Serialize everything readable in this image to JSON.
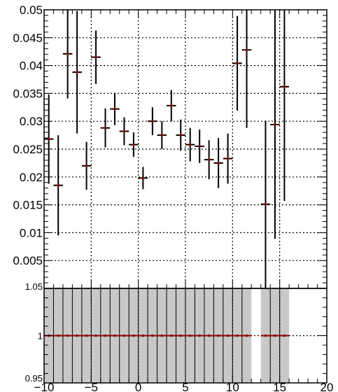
{
  "chart_data": [
    {
      "type": "scatter",
      "panel": "upper",
      "title": "",
      "xlabel": "",
      "ylabel": "",
      "xlim": [
        -10,
        20
      ],
      "ylim": [
        0,
        0.05
      ],
      "grid": true,
      "x_ticks": [
        "−10",
        "−5",
        "0",
        "5",
        "10",
        "15",
        "20"
      ],
      "y_ticks": [
        "0.005",
        "0.01",
        "0.015",
        "0.02",
        "0.025",
        "0.03",
        "0.035",
        "0.04",
        "0.045",
        "0.05"
      ],
      "marker_color": "#8b0000",
      "errorbar_color": "#000000",
      "points": [
        {
          "x": -9.5,
          "y": 0.0268,
          "yerr": 0.008
        },
        {
          "x": -8.5,
          "y": 0.0185,
          "yerr": 0.009
        },
        {
          "x": -7.5,
          "y": 0.0421,
          "yerr": 0.008
        },
        {
          "x": -6.5,
          "y": 0.0388,
          "yerr": 0.011
        },
        {
          "x": -5.5,
          "y": 0.022,
          "yerr": 0.0043
        },
        {
          "x": -4.5,
          "y": 0.0415,
          "yerr": 0.0048
        },
        {
          "x": -3.5,
          "y": 0.0288,
          "yerr": 0.0035
        },
        {
          "x": -2.5,
          "y": 0.0322,
          "yerr": 0.0029
        },
        {
          "x": -1.5,
          "y": 0.0282,
          "yerr": 0.0025
        },
        {
          "x": -0.5,
          "y": 0.0258,
          "yerr": 0.0022
        },
        {
          "x": 0.5,
          "y": 0.0198,
          "yerr": 0.002
        },
        {
          "x": 1.5,
          "y": 0.03,
          "yerr": 0.0025
        },
        {
          "x": 2.5,
          "y": 0.0275,
          "yerr": 0.0025
        },
        {
          "x": 3.5,
          "y": 0.0328,
          "yerr": 0.0028
        },
        {
          "x": 4.5,
          "y": 0.0275,
          "yerr": 0.0028
        },
        {
          "x": 5.5,
          "y": 0.0258,
          "yerr": 0.003
        },
        {
          "x": 6.5,
          "y": 0.0255,
          "yerr": 0.003
        },
        {
          "x": 7.5,
          "y": 0.0231,
          "yerr": 0.0035
        },
        {
          "x": 8.5,
          "y": 0.0225,
          "yerr": 0.0045
        },
        {
          "x": 9.5,
          "y": 0.0233,
          "yerr": 0.0045
        },
        {
          "x": 10.5,
          "y": 0.0404,
          "yerr": 0.0085
        },
        {
          "x": 11.5,
          "y": 0.0428,
          "yerr": 0.014
        },
        {
          "x": 13.5,
          "y": 0.0151,
          "yerr": 0.015
        },
        {
          "x": 14.5,
          "y": 0.0294,
          "yerr": 0.0205
        },
        {
          "x": 15.5,
          "y": 0.0362,
          "yerr": 0.0205
        }
      ]
    },
    {
      "type": "scatter",
      "panel": "lower-ratio",
      "title": "",
      "xlabel": "",
      "ylabel": "",
      "xlim": [
        -10,
        20
      ],
      "ylim": [
        0.95,
        1.05
      ],
      "grid": true,
      "y_ticks": [
        "0.95",
        "1",
        "1.05"
      ],
      "band_color": "#c8c8c8",
      "marker_color": "#8b0000",
      "bands": [
        {
          "x0": -10,
          "x1": 12
        },
        {
          "x0": 13,
          "x1": 16
        }
      ],
      "points": [
        {
          "x": -9.5,
          "y": 1
        },
        {
          "x": -8.5,
          "y": 1
        },
        {
          "x": -7.5,
          "y": 1
        },
        {
          "x": -6.5,
          "y": 1
        },
        {
          "x": -5.5,
          "y": 1
        },
        {
          "x": -4.5,
          "y": 1
        },
        {
          "x": -3.5,
          "y": 1
        },
        {
          "x": -2.5,
          "y": 1
        },
        {
          "x": -1.5,
          "y": 1
        },
        {
          "x": -0.5,
          "y": 1
        },
        {
          "x": 0.5,
          "y": 1
        },
        {
          "x": 1.5,
          "y": 1
        },
        {
          "x": 2.5,
          "y": 1
        },
        {
          "x": 3.5,
          "y": 1
        },
        {
          "x": 4.5,
          "y": 1
        },
        {
          "x": 5.5,
          "y": 1
        },
        {
          "x": 6.5,
          "y": 1
        },
        {
          "x": 7.5,
          "y": 1
        },
        {
          "x": 8.5,
          "y": 1
        },
        {
          "x": 9.5,
          "y": 1
        },
        {
          "x": 10.5,
          "y": 1
        },
        {
          "x": 11.5,
          "y": 1
        },
        {
          "x": 13.5,
          "y": 1
        },
        {
          "x": 14.5,
          "y": 1
        },
        {
          "x": 15.5,
          "y": 1
        }
      ]
    }
  ]
}
